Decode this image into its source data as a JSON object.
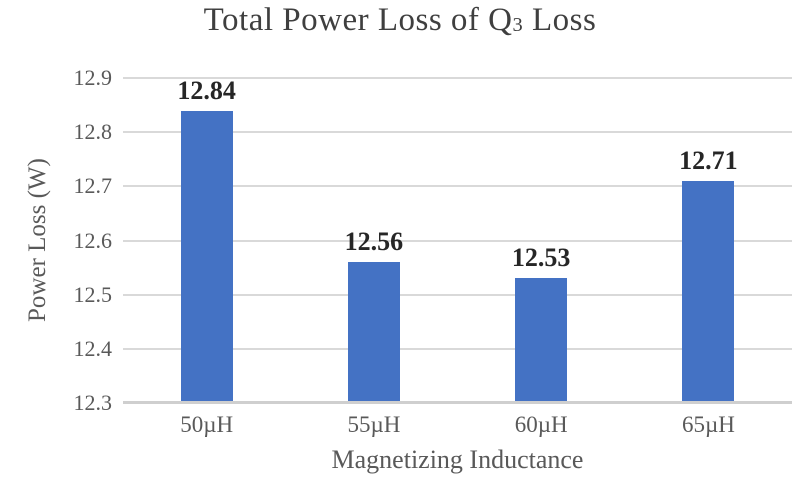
{
  "chart_data": {
    "type": "bar",
    "title": {
      "prefix": "Total Power Loss of Q",
      "subscript": "3",
      "suffix": " Loss"
    },
    "title_plain": "Total Power Loss of Q3 Loss",
    "categories": [
      "50µH",
      "55µH",
      "60µH",
      "65µH"
    ],
    "values": [
      12.84,
      12.56,
      12.53,
      12.71
    ],
    "data_labels": [
      "12.84",
      "12.56",
      "12.53",
      "12.71"
    ],
    "xlabel": "Magnetizing Inductance",
    "ylabel": "Power Loss (W)",
    "ylim": [
      12.3,
      12.9
    ],
    "ytick_step": 0.1,
    "ytick_labels": [
      "12.3",
      "12.4",
      "12.5",
      "12.6",
      "12.7",
      "12.8",
      "12.9"
    ],
    "grid": true,
    "legend": false,
    "colors": {
      "bar": "#4472c4",
      "gridline": "#d9d9d9",
      "axis_line": "#cfcfcf",
      "tick_label": "#595959",
      "title": "#3f3f3f",
      "data_label": "#262626"
    }
  }
}
